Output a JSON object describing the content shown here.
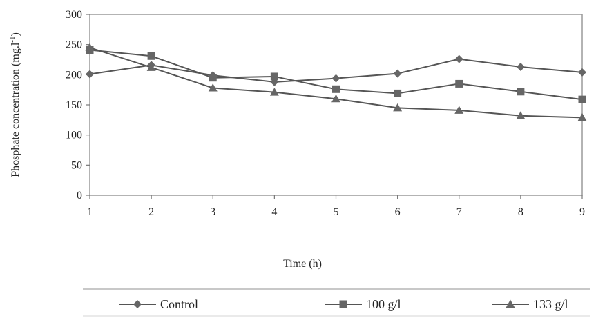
{
  "chart_data": {
    "type": "line",
    "title": "",
    "xlabel": "Time (h)",
    "ylabel": "Phosphate concentration (mg.l",
    "ylabel_sup": "-1",
    "ylabel_close": ")",
    "x": [
      1,
      2,
      3,
      4,
      5,
      6,
      7,
      8,
      9
    ],
    "xlim": [
      1,
      9
    ],
    "ylim": [
      0,
      300
    ],
    "yticks": [
      0,
      50,
      100,
      150,
      200,
      250,
      300
    ],
    "grid": false,
    "legend_position": "bottom",
    "series": [
      {
        "name": "Control",
        "marker": "diamond",
        "values": [
          201,
          216,
          199,
          188,
          194,
          202,
          226,
          213,
          204
        ]
      },
      {
        "name": "100 g/l",
        "marker": "square",
        "values": [
          241,
          231,
          195,
          197,
          176,
          169,
          185,
          172,
          159
        ]
      },
      {
        "name": "133 g/l",
        "marker": "triangle",
        "values": [
          245,
          212,
          178,
          171,
          160,
          145,
          141,
          132,
          129
        ]
      }
    ],
    "colors": {
      "line": "#555555",
      "marker": "#666666",
      "axis": "#777777"
    }
  }
}
